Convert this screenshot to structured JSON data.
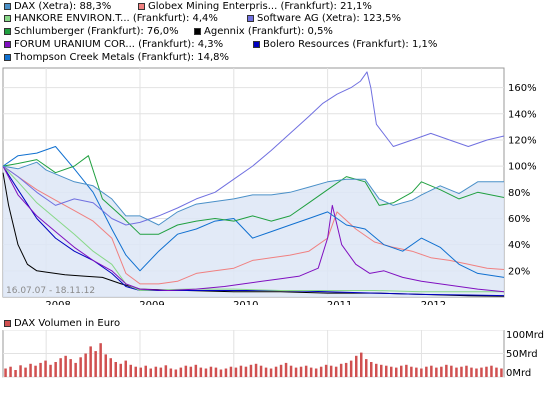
{
  "legend": [
    {
      "label": "DAX (Xetra): 88,3%",
      "color": "#4a90c8"
    },
    {
      "label": "Globex Mining Enterpris... (Frankfurt): 21,1%",
      "color": "#f08080"
    },
    {
      "label": "HANKORE ENVIRON.T... (Frankfurt): 4,4%",
      "color": "#88d888"
    },
    {
      "label": "Software AG (Xetra): 123,5%",
      "color": "#7070e0"
    },
    {
      "label": "Schlumberger (Frankfurt): 76,0%",
      "color": "#20a040"
    },
    {
      "label": "Agennix (Frankfurt): 0,5%",
      "color": "#000000"
    },
    {
      "label": "FORUM URANIUM COR... (Frankfurt): 4,3%",
      "color": "#8010c0"
    },
    {
      "label": "Bolero Resources (Frankfurt): 1,1%",
      "color": "#0000c0"
    },
    {
      "label": "Thompson Creek Metals (Frankfurt): 14,8%",
      "color": "#1070d0"
    }
  ],
  "date_range": "16.07.07 - 18.11.12",
  "volume_label": "DAX Volumen in Euro",
  "volume_color": "#d05050",
  "chart_data": [
    {
      "type": "line",
      "x_ticks": [
        "2008",
        "2009",
        "2010",
        "2011",
        "2012"
      ],
      "y_ticks": [
        "20%",
        "40%",
        "60%",
        "80%",
        "100%",
        "120%",
        "140%",
        "160%"
      ],
      "ylim": [
        0,
        175
      ],
      "xlim": [
        2007.54,
        2012.88
      ],
      "series": [
        {
          "name": "DAX (Xetra)",
          "color": "#4a90c8",
          "area": true,
          "x": [
            2007.54,
            2007.7,
            2007.9,
            2008.0,
            2008.3,
            2008.5,
            2008.7,
            2008.85,
            2009.0,
            2009.2,
            2009.4,
            2009.6,
            2009.8,
            2010.0,
            2010.2,
            2010.4,
            2010.6,
            2010.8,
            2011.0,
            2011.2,
            2011.4,
            2011.55,
            2011.7,
            2011.9,
            2012.0,
            2012.2,
            2012.4,
            2012.6,
            2012.88
          ],
          "y": [
            100,
            98,
            103,
            97,
            88,
            85,
            75,
            62,
            62,
            55,
            65,
            71,
            73,
            75,
            78,
            78,
            80,
            84,
            88,
            90,
            90,
            75,
            70,
            74,
            78,
            85,
            79,
            88,
            88
          ]
        },
        {
          "name": "Globex Mining Enterpris...",
          "color": "#f08080",
          "x": [
            2007.54,
            2007.7,
            2007.9,
            2008.1,
            2008.3,
            2008.5,
            2008.7,
            2008.85,
            2009.0,
            2009.2,
            2009.4,
            2009.6,
            2009.8,
            2010.0,
            2010.2,
            2010.4,
            2010.6,
            2010.8,
            2011.0,
            2011.1,
            2011.3,
            2011.5,
            2011.7,
            2011.9,
            2012.1,
            2012.3,
            2012.5,
            2012.7,
            2012.88
          ],
          "y": [
            100,
            92,
            82,
            74,
            66,
            58,
            45,
            18,
            10,
            10,
            12,
            18,
            20,
            22,
            28,
            30,
            32,
            35,
            45,
            65,
            52,
            42,
            38,
            35,
            30,
            28,
            25,
            22,
            21
          ]
        },
        {
          "name": "HANKORE ENVIRON.T...",
          "color": "#88d888",
          "x": [
            2007.54,
            2007.7,
            2007.9,
            2008.1,
            2008.3,
            2008.5,
            2008.7,
            2008.85,
            2009.0,
            2009.5,
            2010.0,
            2010.5,
            2011.0,
            2011.5,
            2012.0,
            2012.5,
            2012.88
          ],
          "y": [
            100,
            88,
            72,
            60,
            48,
            35,
            25,
            10,
            5,
            6,
            6,
            5,
            5,
            5,
            4,
            4,
            4
          ]
        },
        {
          "name": "Software AG (Xetra)",
          "color": "#7070e0",
          "x": [
            2007.54,
            2007.7,
            2007.9,
            2008.1,
            2008.3,
            2008.5,
            2008.7,
            2008.85,
            2009.0,
            2009.2,
            2009.4,
            2009.6,
            2009.8,
            2010.0,
            2010.2,
            2010.4,
            2010.6,
            2010.8,
            2010.95,
            2011.1,
            2011.25,
            2011.35,
            2011.42,
            2011.46,
            2011.52,
            2011.7,
            2011.9,
            2012.1,
            2012.3,
            2012.5,
            2012.7,
            2012.88
          ],
          "y": [
            100,
            92,
            80,
            70,
            75,
            72,
            60,
            55,
            57,
            62,
            68,
            75,
            80,
            90,
            100,
            112,
            125,
            138,
            148,
            155,
            160,
            165,
            172,
            160,
            132,
            115,
            120,
            125,
            120,
            115,
            120,
            123
          ]
        },
        {
          "name": "Schlumberger (Frankfurt)",
          "color": "#20a040",
          "x": [
            2007.54,
            2007.7,
            2007.9,
            2008.1,
            2008.3,
            2008.45,
            2008.6,
            2008.8,
            2009.0,
            2009.2,
            2009.4,
            2009.6,
            2009.8,
            2010.0,
            2010.2,
            2010.4,
            2010.6,
            2010.8,
            2011.0,
            2011.2,
            2011.4,
            2011.55,
            2011.7,
            2011.9,
            2012.0,
            2012.2,
            2012.4,
            2012.6,
            2012.88
          ],
          "y": [
            100,
            102,
            105,
            95,
            100,
            108,
            75,
            62,
            48,
            48,
            55,
            58,
            60,
            58,
            62,
            58,
            62,
            72,
            82,
            92,
            88,
            70,
            72,
            80,
            88,
            82,
            75,
            80,
            76
          ]
        },
        {
          "name": "Agennix (Frankfurt)",
          "color": "#000000",
          "x": [
            2007.54,
            2007.6,
            2007.7,
            2007.8,
            2007.9,
            2008.0,
            2008.2,
            2008.4,
            2008.6,
            2008.8,
            2009.0,
            2009.5,
            2010.0,
            2010.5,
            2011.0,
            2011.5,
            2012.0,
            2012.5,
            2012.88
          ],
          "y": [
            95,
            70,
            40,
            25,
            20,
            19,
            17,
            16,
            15,
            10,
            6,
            5,
            4,
            4,
            3,
            3,
            2,
            1,
            0.5
          ]
        },
        {
          "name": "FORUM URANIUM COR...",
          "color": "#8010c0",
          "x": [
            2007.54,
            2007.7,
            2007.9,
            2008.1,
            2008.3,
            2008.5,
            2008.7,
            2008.85,
            2009.0,
            2009.3,
            2009.6,
            2009.9,
            2010.1,
            2010.3,
            2010.5,
            2010.7,
            2010.9,
            2011.0,
            2011.05,
            2011.15,
            2011.3,
            2011.45,
            2011.6,
            2011.8,
            2012.0,
            2012.2,
            2012.4,
            2012.6,
            2012.88
          ],
          "y": [
            100,
            78,
            62,
            50,
            38,
            28,
            20,
            10,
            6,
            5,
            6,
            8,
            10,
            12,
            14,
            16,
            22,
            45,
            70,
            40,
            25,
            18,
            20,
            15,
            12,
            10,
            8,
            6,
            4
          ]
        },
        {
          "name": "Bolero Resources (Frankfurt)",
          "color": "#0000c0",
          "x": [
            2007.54,
            2007.7,
            2007.9,
            2008.1,
            2008.3,
            2008.5,
            2008.7,
            2008.85,
            2009.0,
            2009.5,
            2010.0,
            2010.5,
            2011.0,
            2011.5,
            2012.0,
            2012.5,
            2012.88
          ],
          "y": [
            100,
            82,
            60,
            45,
            35,
            28,
            18,
            8,
            5,
            5,
            5,
            5,
            4,
            3,
            2,
            1.5,
            1.1
          ]
        },
        {
          "name": "Thompson Creek Metals (Frankfurt)",
          "color": "#1070d0",
          "x": [
            2007.54,
            2007.7,
            2007.9,
            2008.1,
            2008.3,
            2008.5,
            2008.7,
            2008.85,
            2009.0,
            2009.2,
            2009.4,
            2009.6,
            2009.8,
            2010.0,
            2010.2,
            2010.4,
            2010.6,
            2010.8,
            2011.0,
            2011.2,
            2011.4,
            2011.6,
            2011.8,
            2012.0,
            2012.2,
            2012.4,
            2012.6,
            2012.88
          ],
          "y": [
            100,
            108,
            110,
            115,
            98,
            80,
            52,
            32,
            20,
            35,
            48,
            52,
            58,
            60,
            45,
            50,
            55,
            60,
            65,
            55,
            52,
            40,
            35,
            45,
            38,
            25,
            18,
            15
          ]
        }
      ]
    },
    {
      "type": "bar",
      "title": "DAX Volumen in Euro",
      "y_ticks": [
        "0Mrd",
        "50Mrd",
        "100Mrd"
      ],
      "ylim": [
        0,
        100
      ],
      "x_start": 2007.54,
      "x_end": 2012.88,
      "values": [
        18,
        22,
        15,
        25,
        20,
        28,
        24,
        30,
        35,
        26,
        32,
        40,
        45,
        38,
        30,
        42,
        50,
        65,
        55,
        72,
        48,
        40,
        32,
        28,
        35,
        26,
        22,
        20,
        24,
        18,
        22,
        20,
        25,
        18,
        16,
        20,
        24,
        22,
        26,
        20,
        18,
        22,
        20,
        16,
        18,
        22,
        20,
        24,
        22,
        26,
        28,
        24,
        20,
        18,
        22,
        26,
        30,
        24,
        20,
        22,
        24,
        20,
        18,
        22,
        26,
        24,
        22,
        28,
        30,
        35,
        45,
        52,
        38,
        32,
        28,
        26,
        24,
        22,
        20,
        24,
        26,
        22,
        20,
        18,
        22,
        24,
        20,
        22,
        26,
        24,
        20,
        22,
        24,
        20,
        18,
        20,
        22,
        24,
        20,
        18
      ]
    }
  ]
}
